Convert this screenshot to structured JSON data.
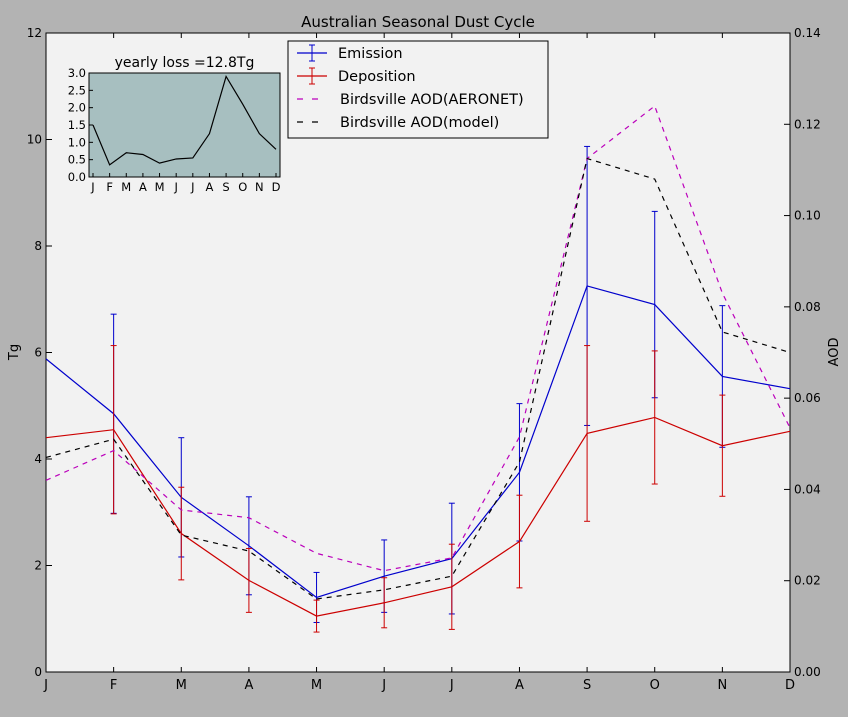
{
  "chart_data": {
    "type": "line",
    "title": "Australian Seasonal Dust Cycle",
    "categories": [
      "J",
      "F",
      "M",
      "A",
      "M",
      "J",
      "J",
      "A",
      "S",
      "O",
      "N",
      "D"
    ],
    "ylabel_left": "Tg",
    "ylabel_right": "AOD",
    "ylim_left": [
      0,
      12
    ],
    "ylim_right": [
      0,
      0.14
    ],
    "yticks_left": [
      "0",
      "2",
      "4",
      "6",
      "8",
      "10",
      "12"
    ],
    "yticks_right": [
      "0.00",
      "0.02",
      "0.04",
      "0.06",
      "0.08",
      "0.10",
      "0.12",
      "0.14"
    ],
    "legend_position": "top-center",
    "series": [
      {
        "name": "Emission",
        "axis": "left",
        "color": "#0000cc",
        "style": "solid",
        "values": [
          5.88,
          4.85,
          3.28,
          2.37,
          1.4,
          1.8,
          2.13,
          3.75,
          7.25,
          6.9,
          5.55,
          5.32
        ],
        "err": [
          null,
          1.87,
          1.12,
          0.92,
          0.47,
          0.68,
          1.04,
          1.29,
          2.62,
          1.75,
          1.33,
          null
        ]
      },
      {
        "name": "Deposition",
        "axis": "left",
        "color": "#cc0000",
        "style": "solid",
        "values": [
          4.4,
          4.55,
          2.6,
          1.72,
          1.05,
          1.3,
          1.6,
          2.45,
          4.48,
          4.78,
          4.25,
          4.52
        ],
        "err": [
          null,
          1.58,
          0.87,
          0.6,
          0.3,
          0.47,
          0.8,
          0.87,
          1.65,
          1.25,
          0.95,
          null
        ]
      },
      {
        "name": "Birdsville AOD(AERONET)",
        "axis": "right",
        "color": "#bb00bb",
        "style": "dashed",
        "values": [
          0.042,
          0.0485,
          0.0355,
          0.0338,
          0.026,
          0.0222,
          0.025,
          0.0515,
          0.1125,
          0.124,
          0.083,
          0.0535
        ]
      },
      {
        "name": "Birdsville AOD(model)",
        "axis": "right",
        "color": "#000000",
        "style": "dashed",
        "values": [
          0.047,
          0.051,
          0.03,
          0.0265,
          0.016,
          0.018,
          0.021,
          0.046,
          0.1125,
          0.108,
          0.0745,
          0.07
        ]
      }
    ],
    "inset": {
      "title": "yearly loss =12.8Tg",
      "categories": [
        "J",
        "F",
        "M",
        "A",
        "M",
        "J",
        "J",
        "A",
        "S",
        "O",
        "N",
        "D"
      ],
      "values": [
        1.5,
        0.35,
        0.7,
        0.65,
        0.4,
        0.52,
        0.55,
        1.25,
        2.9,
        2.1,
        1.25,
        0.8
      ],
      "ylim": [
        0,
        3.0
      ],
      "yticks": [
        "0.0",
        "0.5",
        "1.0",
        "1.5",
        "2.0",
        "2.5",
        "3.0"
      ],
      "background": "#a7bfc0",
      "line_color": "#000000"
    }
  }
}
